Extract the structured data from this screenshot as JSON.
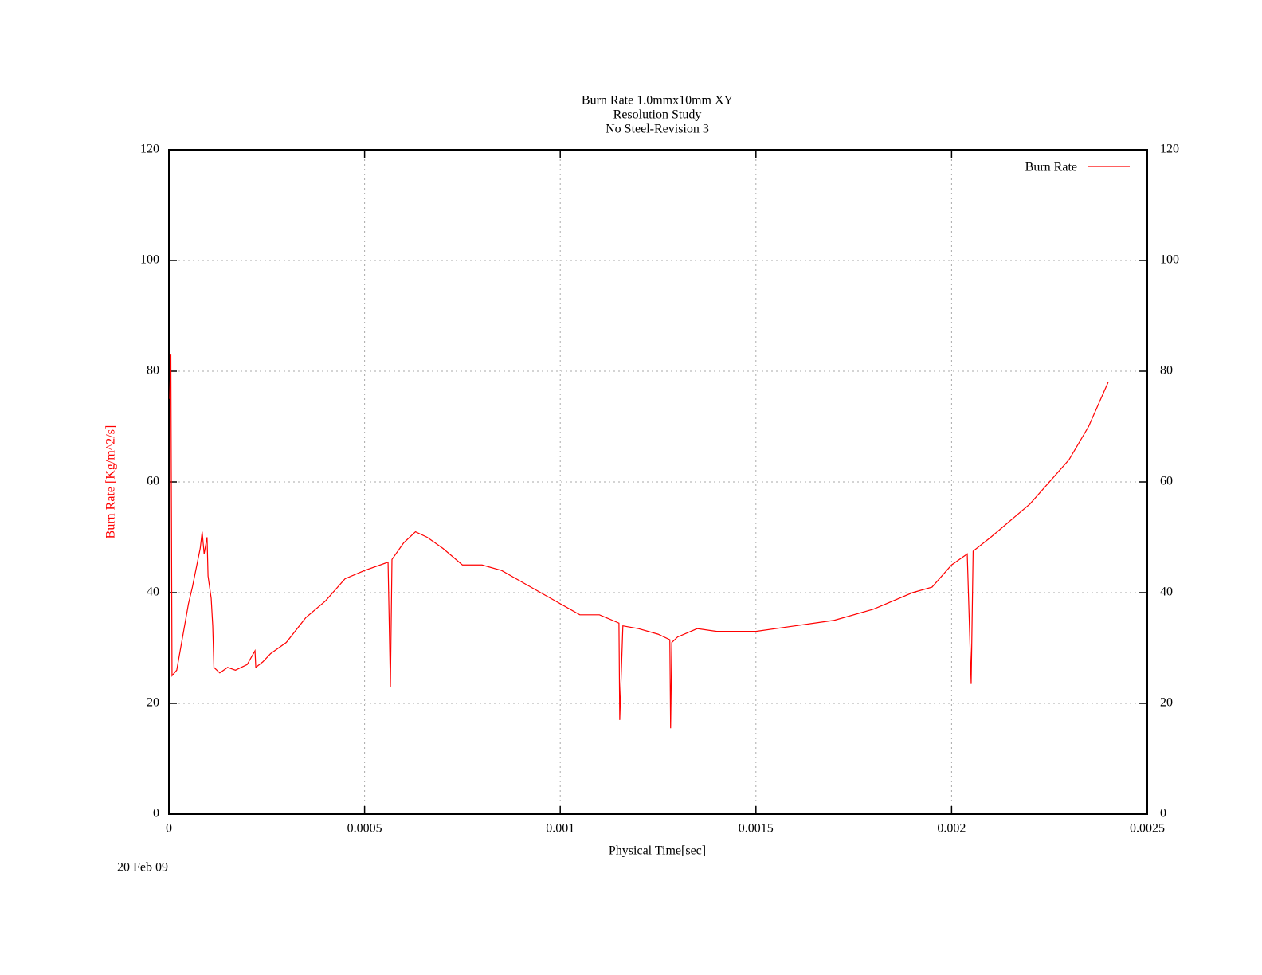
{
  "chart_data": {
    "type": "line",
    "title": [
      "Burn Rate 1.0mmx10mm XY",
      "Resolution Study",
      "No Steel-Revision 3"
    ],
    "x_label": "Physical Time[sec]",
    "y_label": "Burn Rate  [Kg/m^2/s]",
    "date": "20 Feb 09",
    "legend_position": "upper right",
    "grid": true,
    "xlim": [
      0,
      0.0025
    ],
    "xticks": [
      0,
      0.0005,
      0.001,
      0.0015,
      0.002,
      0.0025
    ],
    "ylim": [
      0,
      120
    ],
    "yticks": [
      0,
      20,
      40,
      60,
      80,
      100,
      120
    ],
    "y2lim": [
      0,
      120
    ],
    "y2ticks": [
      0,
      20,
      40,
      60,
      80,
      100,
      120
    ],
    "x": [
      2e-06,
      5e-06,
      8e-06,
      2e-05,
      3e-05,
      5e-05,
      6e-05,
      8e-05,
      8.5e-05,
      9e-05,
      9.75e-05,
      0.0001,
      0.000108,
      0.000112,
      0.000115,
      0.00013,
      0.00015,
      0.00017,
      0.0002,
      0.00022,
      0.000222,
      0.00024,
      0.00026,
      0.0003,
      0.00035,
      0.0004,
      0.00045,
      0.0005,
      0.00056,
      0.000566,
      0.00057,
      0.0006,
      0.00063,
      0.00066,
      0.0007,
      0.00075,
      0.0008,
      0.00085,
      0.0009,
      0.00095,
      0.001,
      0.00105,
      0.0011,
      0.00115,
      0.001152,
      0.00116,
      0.0012,
      0.00125,
      0.00128,
      0.001282,
      0.001285,
      0.0013,
      0.00135,
      0.0014,
      0.0015,
      0.0016,
      0.0017,
      0.0018,
      0.0019,
      0.00195,
      0.002,
      0.00204,
      0.00205,
      0.002055,
      0.0021,
      0.0022,
      0.0023,
      0.00235,
      0.0024
    ],
    "series": [
      {
        "name": "Burn Rate",
        "color": "#ff0000",
        "values": [
          75,
          83,
          25,
          26,
          30,
          38,
          41,
          48,
          51,
          47,
          50,
          43,
          39,
          34,
          26.5,
          25.5,
          26.5,
          26,
          27,
          29.5,
          26.5,
          27.5,
          29,
          31,
          35.5,
          38.5,
          42.5,
          44,
          45.5,
          23,
          46,
          49,
          51,
          50,
          48,
          45,
          45,
          44,
          42,
          40,
          38,
          36,
          36,
          34.5,
          17,
          34,
          33.5,
          32.5,
          31.5,
          15.5,
          31,
          32,
          33.5,
          33,
          33,
          34,
          35,
          37,
          40,
          41,
          45,
          47,
          23.5,
          47.5,
          50,
          56,
          64,
          70,
          78
        ]
      }
    ]
  }
}
